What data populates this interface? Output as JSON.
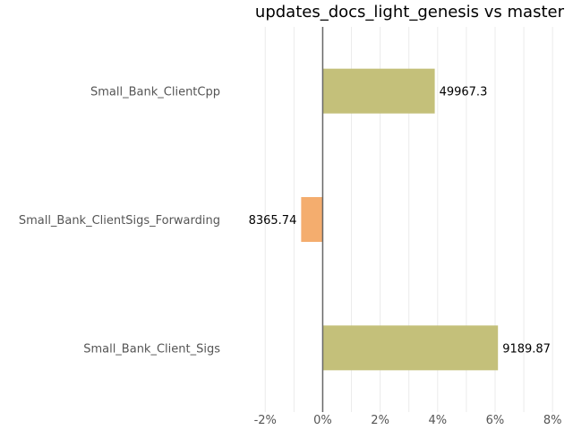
{
  "chart_data": {
    "type": "bar",
    "orientation": "horizontal",
    "title": "updates_docs_light_genesis vs master",
    "xlabel": "",
    "ylabel": "",
    "categories": [
      "Small_Bank_ClientCpp",
      "Small_Bank_ClientSigs_Forwarding",
      "Small_Bank_Client_Sigs"
    ],
    "values": [
      3.9,
      -0.75,
      6.1
    ],
    "data_labels": [
      "49967.3",
      "8365.74",
      "9189.87"
    ],
    "bar_colors": [
      "#c4c07a",
      "#f4ad6e",
      "#c4c07a"
    ],
    "xlim": [
      -2.6,
      8.4
    ],
    "x_ticks": [
      -2,
      0,
      2,
      4,
      6,
      8
    ],
    "x_tick_labels": [
      "-2%",
      "0%",
      "2%",
      "4%",
      "6%",
      "8%"
    ],
    "grid": true,
    "legend": "none"
  }
}
